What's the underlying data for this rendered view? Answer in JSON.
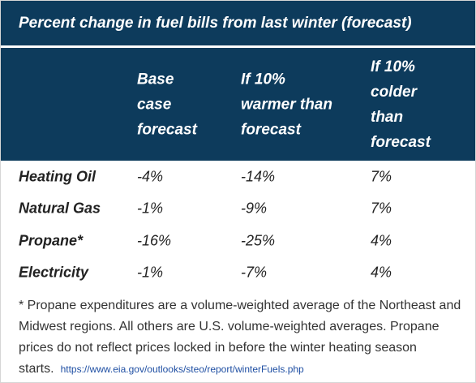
{
  "header": {
    "title": "Percent change in fuel bills from last winter (forecast)"
  },
  "table": {
    "columns": [
      "Base case forecast",
      "If 10% warmer than forecast",
      "If 10% colder than forecast"
    ],
    "rows": [
      [
        "Heating Oil",
        "-4%",
        "-14%",
        "7%"
      ],
      [
        "Natural Gas",
        "-1%",
        "-9%",
        "7%"
      ],
      [
        "Propane*",
        "-16%",
        "-25%",
        "4%"
      ],
      [
        "Electricity",
        "-1%",
        "-7%",
        "4%"
      ]
    ]
  },
  "footnote": {
    "text": "* Propane expenditures are a volume-weighted average of the Northeast and Midwest regions. All others are U.S. volume-weighted averages. Propane prices do not reflect prices locked in before the winter heating season starts.",
    "url": "https://www.eia.gov/outlooks/steo/report/winterFuels.php"
  }
}
